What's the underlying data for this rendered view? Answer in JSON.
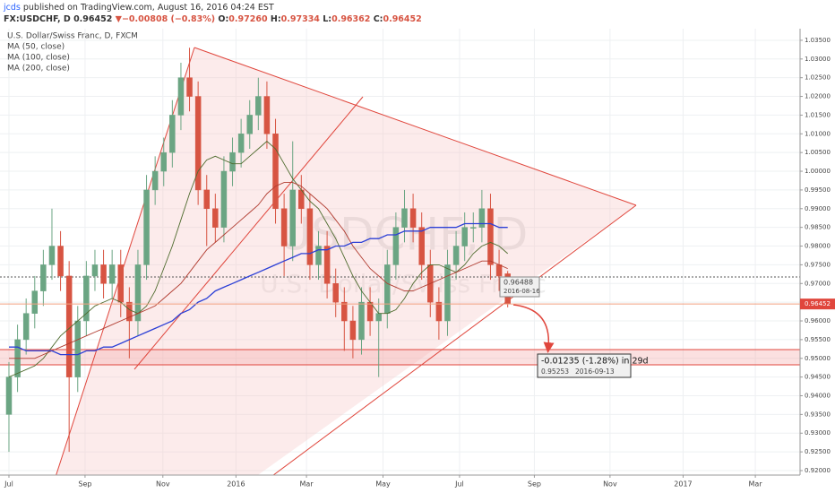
{
  "header": {
    "author": "jcds",
    "published": "published on TradingView.com, August 16, 2016 04:24 EST",
    "symbol": "FX:USDCHF, D",
    "last": "0.96452",
    "arrow": "▼",
    "change": "−0.00808 (−0.83%)",
    "o_label": "O:",
    "o": "0.97260",
    "h_label": "H:",
    "h": "0.97334",
    "l_label": "L:",
    "l": "0.96362",
    "c_label": "C:",
    "c": "0.96452"
  },
  "chart_data": {
    "type": "candlestick",
    "title": "U.S. Dollar/Swiss Franc, D, FXCM",
    "watermark": "USDCHF, D",
    "watermark_sub": "U.S. Dollar/Swiss Franc",
    "up_color": "#6ba583",
    "down_color": "#d75442",
    "candles": {
      "open": [
        0.935,
        0.945,
        0.955,
        0.962,
        0.968,
        0.975,
        0.98,
        0.972,
        0.945,
        0.96,
        0.972,
        0.975,
        0.97,
        0.975,
        0.965,
        0.96,
        0.975,
        0.995,
        1.0,
        1.005,
        1.015,
        1.025,
        1.02,
        0.995,
        0.99,
        0.985,
        1.0,
        1.005,
        1.01,
        1.015,
        1.02,
        1.01,
        0.99,
        0.98,
        0.995,
        0.99,
        0.975,
        0.98,
        0.97,
        0.965,
        0.96,
        0.955,
        0.965,
        0.96,
        0.962,
        0.975,
        0.985,
        0.99,
        0.985,
        0.975,
        0.965,
        0.96,
        0.975,
        0.98,
        0.985,
        0.985,
        0.99,
        0.975,
        0.9726
      ],
      "high": [
        0.949,
        0.959,
        0.966,
        0.972,
        0.979,
        0.99,
        0.984,
        0.976,
        0.964,
        0.976,
        0.979,
        0.979,
        0.979,
        0.979,
        0.969,
        0.979,
        0.999,
        1.004,
        1.009,
        1.019,
        1.029,
        1.033,
        1.024,
        0.999,
        0.994,
        1.004,
        1.009,
        1.014,
        1.019,
        1.025,
        1.024,
        1.014,
        0.994,
        1.008,
        0.999,
        0.994,
        0.984,
        0.984,
        0.974,
        0.969,
        0.964,
        0.969,
        0.969,
        0.966,
        0.979,
        0.989,
        0.995,
        0.994,
        0.989,
        0.979,
        0.969,
        0.979,
        0.984,
        0.989,
        0.989,
        0.995,
        0.994,
        0.979,
        0.97334
      ],
      "low": [
        0.925,
        0.941,
        0.951,
        0.958,
        0.964,
        0.971,
        0.968,
        0.925,
        0.941,
        0.956,
        0.968,
        0.966,
        0.966,
        0.961,
        0.95,
        0.956,
        0.971,
        0.991,
        0.996,
        1.001,
        1.011,
        1.016,
        0.991,
        0.98,
        0.981,
        0.981,
        0.996,
        1.001,
        1.006,
        1.011,
        1.006,
        0.986,
        0.972,
        0.976,
        0.986,
        0.971,
        0.971,
        0.966,
        0.961,
        0.952,
        0.95,
        0.951,
        0.956,
        0.945,
        0.958,
        0.971,
        0.981,
        0.981,
        0.971,
        0.961,
        0.955,
        0.956,
        0.971,
        0.976,
        0.981,
        0.981,
        0.971,
        0.968,
        0.96362
      ],
      "close": [
        0.945,
        0.955,
        0.962,
        0.968,
        0.975,
        0.98,
        0.972,
        0.945,
        0.96,
        0.972,
        0.975,
        0.97,
        0.975,
        0.965,
        0.96,
        0.975,
        0.995,
        1.0,
        1.005,
        1.015,
        1.025,
        1.02,
        0.995,
        0.99,
        0.985,
        1.0,
        1.005,
        1.01,
        1.015,
        1.02,
        1.01,
        0.99,
        0.98,
        0.995,
        0.99,
        0.975,
        0.98,
        0.97,
        0.965,
        0.96,
        0.955,
        0.965,
        0.96,
        0.962,
        0.975,
        0.985,
        0.99,
        0.985,
        0.975,
        0.965,
        0.96,
        0.975,
        0.98,
        0.985,
        0.985,
        0.99,
        0.975,
        0.972,
        0.96452
      ]
    },
    "series": [
      {
        "name": "MA (50, close)",
        "color": "#4e6b2e",
        "values": [
          0.945,
          0.946,
          0.947,
          0.948,
          0.95,
          0.953,
          0.956,
          0.958,
          0.96,
          0.962,
          0.964,
          0.965,
          0.966,
          0.965,
          0.963,
          0.962,
          0.964,
          0.968,
          0.974,
          0.98,
          0.987,
          0.994,
          1.0,
          1.003,
          1.004,
          1.003,
          1.002,
          1.002,
          1.004,
          1.006,
          1.008,
          1.006,
          1.002,
          0.998,
          0.995,
          0.992,
          0.99,
          0.986,
          0.982,
          0.977,
          0.972,
          0.968,
          0.965,
          0.962,
          0.962,
          0.963,
          0.966,
          0.97,
          0.973,
          0.975,
          0.975,
          0.974,
          0.973,
          0.975,
          0.978,
          0.98,
          0.981,
          0.98,
          0.978
        ]
      },
      {
        "name": "MA (100, close)",
        "color": "#b03a2e",
        "values": [
          0.95,
          0.95,
          0.95,
          0.95,
          0.951,
          0.952,
          0.953,
          0.954,
          0.955,
          0.956,
          0.957,
          0.958,
          0.959,
          0.96,
          0.961,
          0.962,
          0.963,
          0.964,
          0.966,
          0.968,
          0.97,
          0.973,
          0.976,
          0.979,
          0.981,
          0.983,
          0.985,
          0.987,
          0.989,
          0.991,
          0.994,
          0.996,
          0.997,
          0.997,
          0.996,
          0.994,
          0.992,
          0.99,
          0.987,
          0.984,
          0.98,
          0.977,
          0.974,
          0.972,
          0.97,
          0.969,
          0.968,
          0.968,
          0.969,
          0.97,
          0.971,
          0.972,
          0.973,
          0.974,
          0.975,
          0.976,
          0.976,
          0.975,
          0.974
        ]
      },
      {
        "name": "MA (200, close)",
        "color": "#2b3fd6",
        "values": [
          0.953,
          0.953,
          0.952,
          0.952,
          0.952,
          0.952,
          0.951,
          0.951,
          0.951,
          0.952,
          0.952,
          0.953,
          0.953,
          0.954,
          0.955,
          0.956,
          0.957,
          0.958,
          0.959,
          0.96,
          0.962,
          0.963,
          0.965,
          0.966,
          0.968,
          0.969,
          0.97,
          0.971,
          0.972,
          0.973,
          0.974,
          0.975,
          0.976,
          0.977,
          0.978,
          0.978,
          0.979,
          0.979,
          0.98,
          0.98,
          0.981,
          0.981,
          0.982,
          0.982,
          0.983,
          0.983,
          0.984,
          0.984,
          0.984,
          0.985,
          0.985,
          0.985,
          0.985,
          0.986,
          0.986,
          0.986,
          0.986,
          0.985,
          0.985
        ]
      }
    ],
    "legend": "top-left",
    "last_price": {
      "value": 0.96452,
      "label": "0.96452"
    },
    "last_price_color": "#e0463c",
    "xlim": [
      -1.04,
      92
    ],
    "xticks": [
      {
        "value": 0,
        "label": "Jul"
      },
      {
        "value": 8.85,
        "label": "Sep"
      },
      {
        "value": 17.9,
        "label": "Nov"
      },
      {
        "value": 26.4,
        "label": "2016"
      },
      {
        "value": 34.6,
        "label": "Mar"
      },
      {
        "value": 43.5,
        "label": "May"
      },
      {
        "value": 52.4,
        "label": "Jul"
      },
      {
        "value": 61.1,
        "label": "Sep"
      },
      {
        "value": 69.9,
        "label": "Nov"
      },
      {
        "value": 78.4,
        "label": "2017"
      },
      {
        "value": 86.8,
        "label": "Mar"
      }
    ],
    "ylim": [
      0.9188,
      1.0381
    ],
    "yticks": [
      {
        "value": 0.92,
        "label": "0.92000"
      },
      {
        "value": 0.925,
        "label": "0.92500"
      },
      {
        "value": 0.93,
        "label": "0.93000"
      },
      {
        "value": 0.935,
        "label": "0.93500"
      },
      {
        "value": 0.94,
        "label": "0.94000"
      },
      {
        "value": 0.945,
        "label": "0.94500"
      },
      {
        "value": 0.95,
        "label": "0.95000"
      },
      {
        "value": 0.955,
        "label": "0.95500"
      },
      {
        "value": 0.96,
        "label": "0.96000"
      },
      {
        "value": 0.965,
        "label": "0.96500"
      },
      {
        "value": 0.97,
        "label": "0.97000"
      },
      {
        "value": 0.975,
        "label": "0.97500"
      },
      {
        "value": 0.98,
        "label": "0.98000"
      },
      {
        "value": 0.985,
        "label": "0.98500"
      },
      {
        "value": 0.99,
        "label": "0.99000"
      },
      {
        "value": 0.995,
        "label": "0.99500"
      },
      {
        "value": 1.0,
        "label": "1.00000"
      },
      {
        "value": 1.005,
        "label": "1.00500"
      },
      {
        "value": 1.01,
        "label": "1.01000"
      },
      {
        "value": 1.015,
        "label": "1.01500"
      },
      {
        "value": 1.02,
        "label": "1.02000"
      },
      {
        "value": 1.025,
        "label": "1.02500"
      },
      {
        "value": 1.03,
        "label": "1.03000"
      },
      {
        "value": 1.035,
        "label": "1.03500"
      }
    ],
    "grid": true,
    "annotations": {
      "point_price": "0.96488",
      "point_date": "2016-08-16",
      "measure": "-0.01235 (-1.28%) in 29d",
      "target_price": "0.95253",
      "target_date": "2016-09-13"
    }
  }
}
